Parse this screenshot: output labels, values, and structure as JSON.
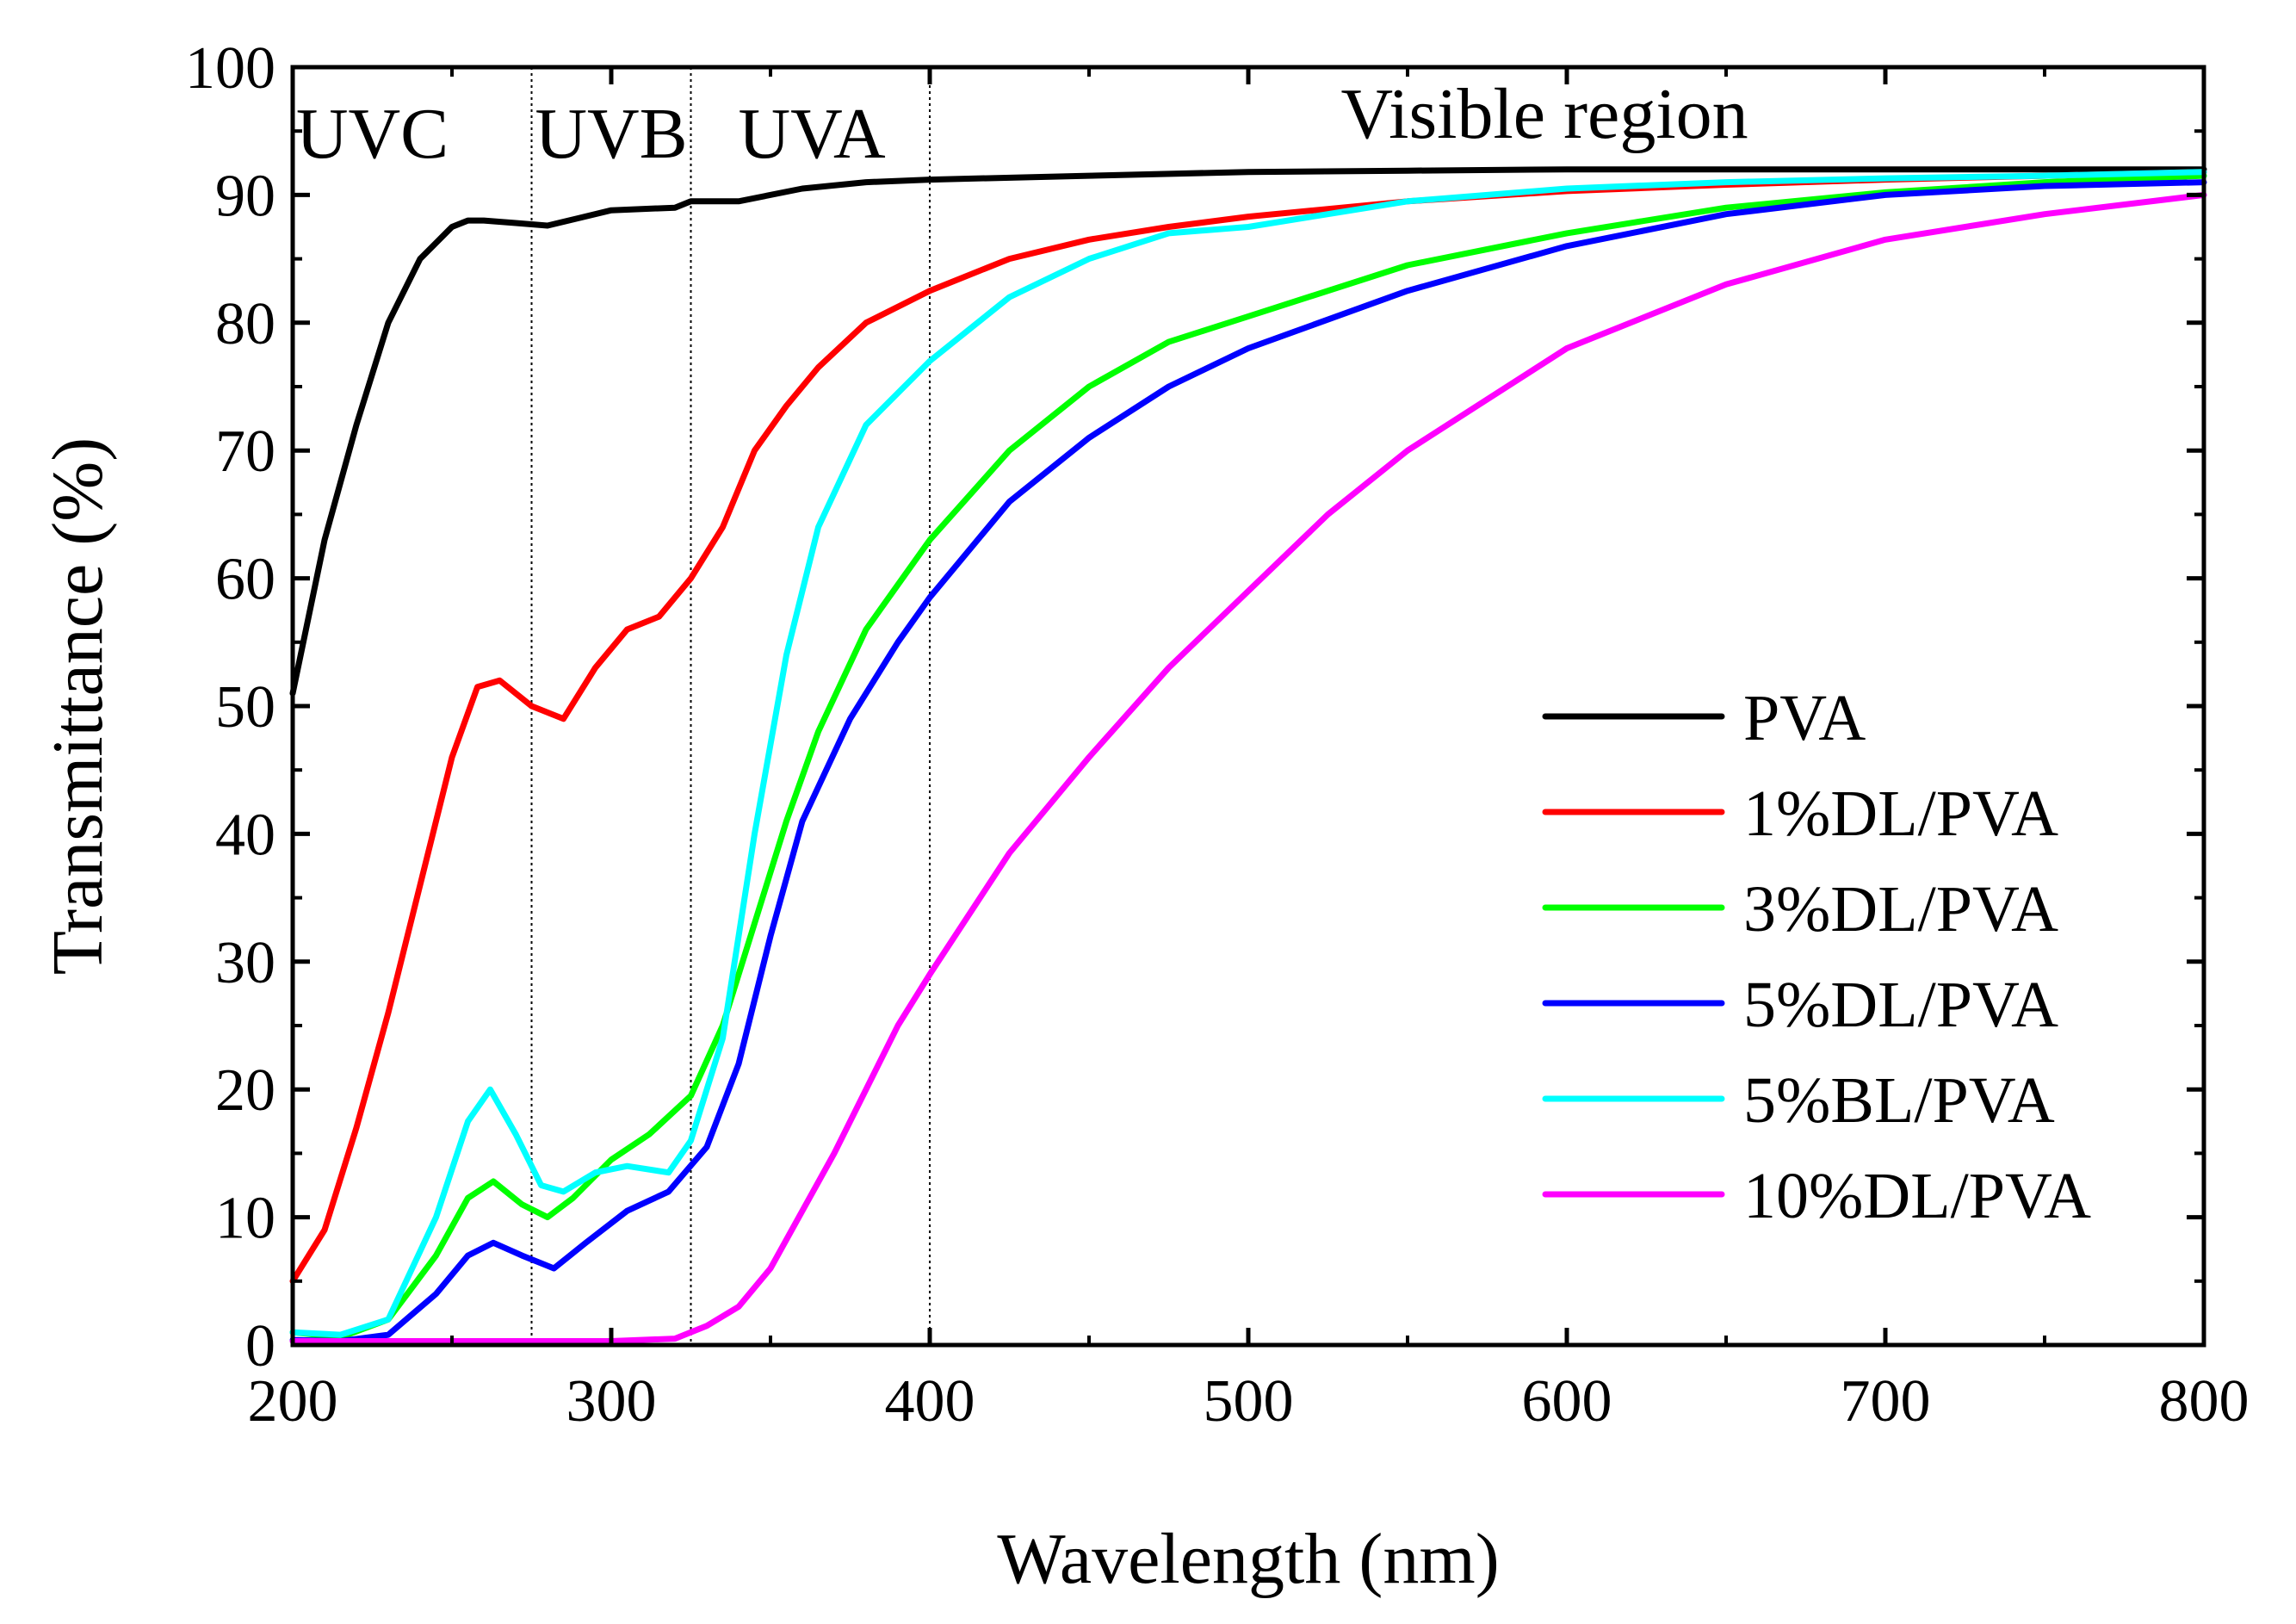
{
  "chart_data": {
    "type": "line",
    "title": "",
    "xlabel": "Wavelength (nm)",
    "ylabel": "Transmittance (%)",
    "xlim": [
      200,
      800
    ],
    "ylim": [
      0,
      100
    ],
    "x_ticks": [
      200,
      300,
      400,
      500,
      600,
      700,
      800
    ],
    "y_ticks": [
      0,
      10,
      20,
      30,
      40,
      50,
      60,
      70,
      80,
      90,
      100
    ],
    "grid": false,
    "legend_position": "bottom-right",
    "regions": [
      {
        "label": "UVC",
        "x_label": 225
      },
      {
        "label": "UVB",
        "x_label": 300
      },
      {
        "label": "UVA",
        "x_label": 363
      },
      {
        "label": "Visible region",
        "x_label": 593
      }
    ],
    "region_boundaries": [
      275,
      325,
      400
    ],
    "series": [
      {
        "name": "PVA",
        "color": "#000000",
        "x": [
          200,
          210,
          220,
          230,
          240,
          250,
          255,
          260,
          270,
          280,
          290,
          300,
          320,
          325,
          340,
          360,
          380,
          400,
          450,
          500,
          550,
          600,
          700,
          800
        ],
        "y": [
          51,
          63,
          72,
          80,
          85,
          87.5,
          88,
          88,
          87.8,
          87.6,
          88.2,
          88.8,
          89,
          89.5,
          89.5,
          90.5,
          91,
          91.2,
          91.5,
          91.8,
          91.9,
          92,
          92,
          92
        ]
      },
      {
        "name": "1%DL/PVA",
        "color": "#ff0000",
        "x": [
          200,
          210,
          220,
          230,
          240,
          250,
          258,
          265,
          275,
          285,
          295,
          305,
          315,
          325,
          335,
          345,
          355,
          365,
          380,
          400,
          425,
          450,
          475,
          500,
          550,
          600,
          650,
          700,
          750,
          800
        ],
        "y": [
          5,
          9,
          17,
          26,
          36,
          46,
          51.5,
          52,
          50,
          49,
          53,
          56,
          57,
          60,
          64,
          70,
          73.5,
          76.5,
          80,
          82.5,
          85,
          86.5,
          87.5,
          88.3,
          89.5,
          90.3,
          90.8,
          91.2,
          91.5,
          91.8
        ]
      },
      {
        "name": "3%DL/PVA",
        "color": "#00ff00",
        "x": [
          200,
          215,
          230,
          245,
          255,
          263,
          272,
          280,
          288,
          300,
          312,
          325,
          335,
          345,
          355,
          365,
          380,
          400,
          425,
          450,
          475,
          500,
          550,
          600,
          650,
          700,
          750,
          800
        ],
        "y": [
          1,
          0.6,
          2,
          7,
          11.5,
          12.8,
          11,
          10,
          11.5,
          14.5,
          16.5,
          19.5,
          25,
          33,
          41,
          48,
          56,
          63,
          70,
          75,
          78.5,
          80.5,
          84.5,
          87,
          89,
          90.2,
          91,
          91.5
        ]
      },
      {
        "name": "5%DL/PVA",
        "color": "#0000ff",
        "x": [
          200,
          215,
          230,
          245,
          255,
          263,
          272,
          282,
          292,
          305,
          318,
          330,
          340,
          350,
          360,
          375,
          390,
          400,
          425,
          450,
          475,
          500,
          550,
          600,
          650,
          700,
          750,
          800
        ],
        "y": [
          0.4,
          0.3,
          0.8,
          4,
          7,
          8,
          7,
          6,
          8,
          10.5,
          12,
          15.5,
          22,
          32,
          41,
          49,
          55,
          58.5,
          66,
          71,
          75,
          78,
          82.5,
          86,
          88.5,
          90,
          90.7,
          91
        ]
      },
      {
        "name": "5%BL/PVA",
        "color": "#00ffff",
        "x": [
          200,
          215,
          230,
          245,
          255,
          262,
          270,
          278,
          285,
          295,
          305,
          318,
          325,
          335,
          345,
          355,
          365,
          380,
          400,
          425,
          450,
          475,
          500,
          550,
          600,
          650,
          700,
          750,
          800
        ],
        "y": [
          1,
          0.8,
          2,
          10,
          17.5,
          20,
          16.5,
          12.5,
          12,
          13.5,
          14,
          13.5,
          16,
          24,
          40,
          54,
          64,
          72,
          77,
          82,
          85,
          87,
          87.5,
          89.5,
          90.5,
          91,
          91.3,
          91.5,
          91.8
        ]
      },
      {
        "name": "10%DL/PVA",
        "color": "#ff00ff",
        "x": [
          200,
          250,
          300,
          320,
          330,
          340,
          350,
          360,
          370,
          380,
          390,
          400,
          425,
          450,
          475,
          500,
          525,
          550,
          575,
          600,
          650,
          700,
          750,
          800
        ],
        "y": [
          0.3,
          0.3,
          0.3,
          0.5,
          1.5,
          3,
          6,
          10.5,
          15,
          20,
          25,
          29,
          38.5,
          46,
          53,
          59,
          65,
          70,
          74,
          78,
          83,
          86.5,
          88.5,
          90
        ]
      }
    ]
  }
}
